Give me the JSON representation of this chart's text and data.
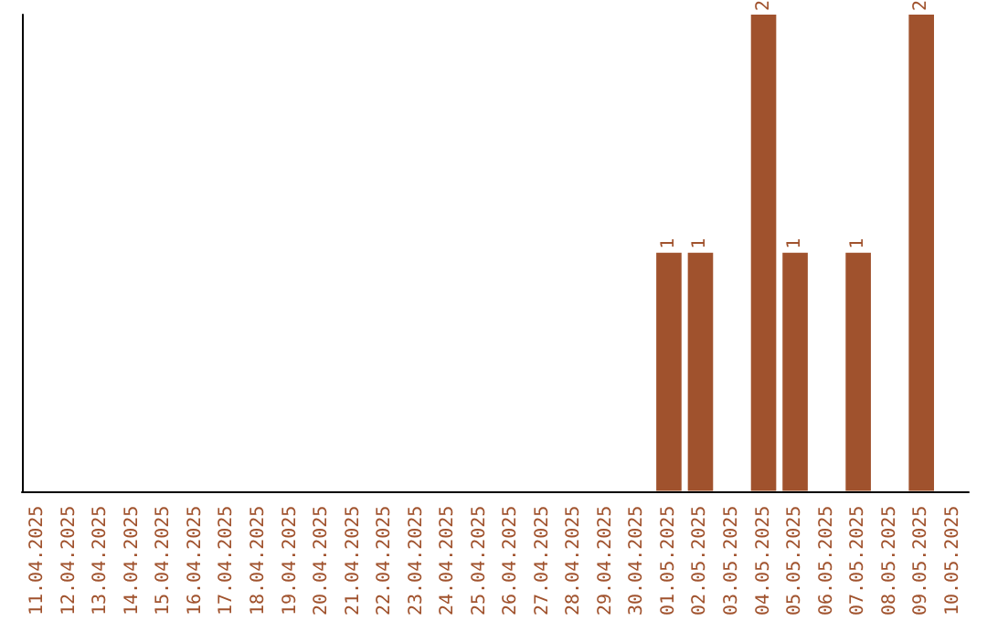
{
  "chart_data": {
    "type": "bar",
    "categories": [
      "11.04.2025",
      "12.04.2025",
      "13.04.2025",
      "14.04.2025",
      "15.04.2025",
      "16.04.2025",
      "17.04.2025",
      "18.04.2025",
      "19.04.2025",
      "20.04.2025",
      "21.04.2025",
      "22.04.2025",
      "23.04.2025",
      "24.04.2025",
      "25.04.2025",
      "26.04.2025",
      "27.04.2025",
      "28.04.2025",
      "29.04.2025",
      "30.04.2025",
      "01.05.2025",
      "02.05.2025",
      "03.05.2025",
      "04.05.2025",
      "05.05.2025",
      "06.05.2025",
      "07.05.2025",
      "08.05.2025",
      "09.05.2025",
      "10.05.2025"
    ],
    "values": [
      null,
      null,
      null,
      null,
      null,
      null,
      null,
      null,
      null,
      null,
      null,
      null,
      null,
      null,
      null,
      null,
      null,
      null,
      null,
      null,
      1,
      1,
      null,
      2,
      1,
      null,
      1,
      null,
      2,
      null
    ],
    "data_labels": true,
    "color": "#a0522d",
    "tick_labels": "x"
  }
}
